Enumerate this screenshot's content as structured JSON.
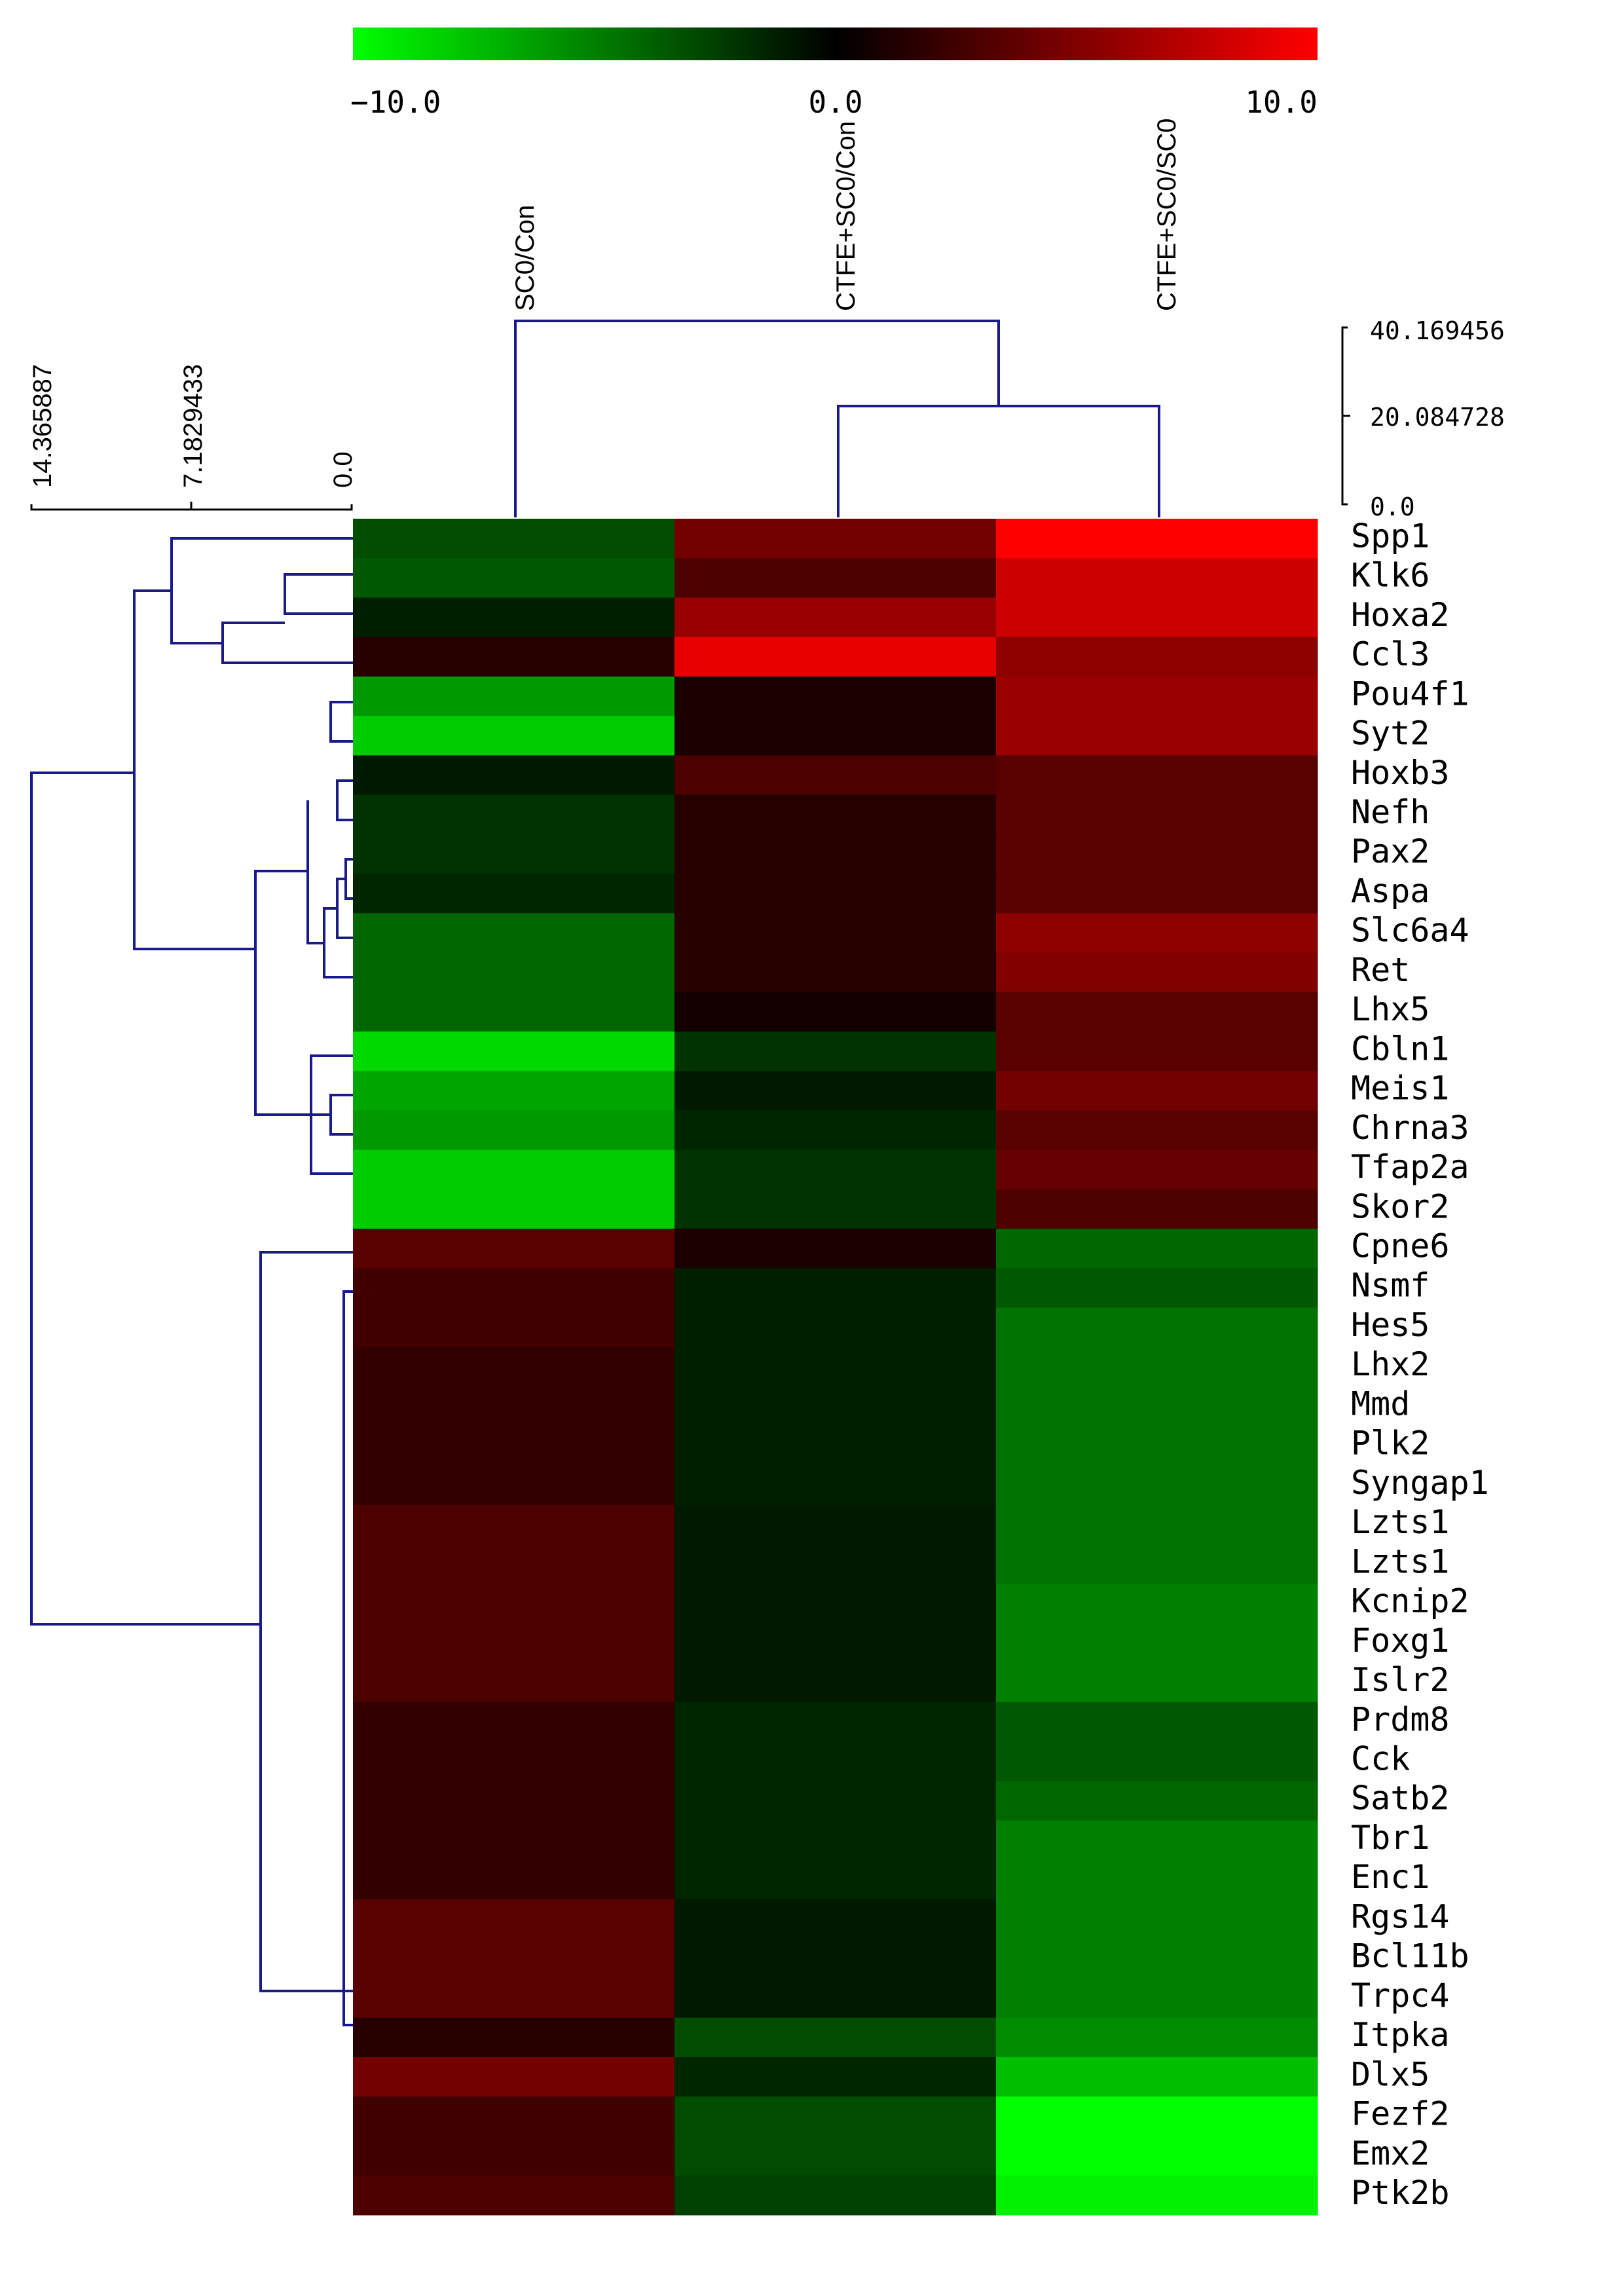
{
  "chart_data": {
    "type": "heatmap",
    "title": "",
    "colorbar": {
      "min": -10.0,
      "mid": 0.0,
      "max": 10.0,
      "tick_labels": [
        "−10.0",
        "0.0",
        "10.0"
      ],
      "low_color": "#00ff00",
      "mid_color": "#000000",
      "high_color": "#ff0000"
    },
    "columns": [
      "SC0/Con",
      "CTFE+SC0/Con",
      "CTFE+SC0/SC0"
    ],
    "rows": [
      "Spp1",
      "Klk6",
      "Hoxa2",
      "Ccl3",
      "Pou4f1",
      "Syt2",
      "Hoxb3",
      "Nefh",
      "Pax2",
      "Aspa",
      "Slc6a4",
      "Ret",
      "Lhx5",
      "Cbln1",
      "Meis1",
      "Chrna3",
      "Tfap2a",
      "Skor2",
      "Cpne6",
      "Nsmf",
      "Hes5",
      "Lhx2",
      "Mmd",
      "Plk2",
      "Syngap1",
      "Lzts1",
      "Lzts1",
      "Kcnip2",
      "Foxg1",
      "Islr2",
      "Prdm8",
      "Cck",
      "Satb2",
      "Tbr1",
      "Enc1",
      "Rgs14",
      "Bcl11b",
      "Trpc4",
      "Itpka",
      "Dlx5",
      "Fezf2",
      "Emx2",
      "Ptk2b"
    ],
    "values": [
      [
        -3.0,
        4.5,
        10.0
      ],
      [
        -3.5,
        3.0,
        8.0
      ],
      [
        -1.2,
        6.0,
        8.0
      ],
      [
        1.5,
        9.0,
        5.5
      ],
      [
        -6.0,
        1.0,
        6.0
      ],
      [
        -8.0,
        1.0,
        6.0
      ],
      [
        -1.0,
        3.0,
        3.5
      ],
      [
        -2.0,
        1.5,
        3.5
      ],
      [
        -2.0,
        1.5,
        3.5
      ],
      [
        -1.5,
        1.5,
        3.5
      ],
      [
        -4.0,
        1.5,
        5.5
      ],
      [
        -4.0,
        1.5,
        5.0
      ],
      [
        -4.0,
        0.8,
        3.5
      ],
      [
        -8.5,
        -2.0,
        3.5
      ],
      [
        -6.5,
        -1.0,
        4.5
      ],
      [
        -6.0,
        -1.5,
        3.5
      ],
      [
        -8.0,
        -2.0,
        4.0
      ],
      [
        -8.0,
        -2.0,
        3.0
      ],
      [
        3.5,
        1.0,
        -4.0
      ],
      [
        2.5,
        -1.2,
        -3.5
      ],
      [
        2.5,
        -1.2,
        -4.5
      ],
      [
        2.0,
        -1.2,
        -4.5
      ],
      [
        2.0,
        -1.2,
        -4.5
      ],
      [
        2.0,
        -1.2,
        -4.5
      ],
      [
        2.0,
        -1.2,
        -4.5
      ],
      [
        3.0,
        -1.0,
        -4.5
      ],
      [
        3.0,
        -1.0,
        -4.5
      ],
      [
        3.0,
        -1.0,
        -5.0
      ],
      [
        3.0,
        -1.0,
        -5.0
      ],
      [
        3.0,
        -1.0,
        -5.0
      ],
      [
        2.0,
        -1.5,
        -3.5
      ],
      [
        2.0,
        -1.5,
        -3.5
      ],
      [
        2.0,
        -1.5,
        -4.0
      ],
      [
        2.0,
        -1.5,
        -5.0
      ],
      [
        2.0,
        -1.5,
        -5.0
      ],
      [
        3.5,
        -1.0,
        -5.0
      ],
      [
        3.5,
        -1.0,
        -5.0
      ],
      [
        3.5,
        -1.0,
        -5.0
      ],
      [
        1.5,
        -3.0,
        -5.5
      ],
      [
        4.5,
        -1.5,
        -7.5
      ],
      [
        2.5,
        -3.0,
        -10.0
      ],
      [
        2.5,
        -3.0,
        -10.0
      ],
      [
        3.0,
        -2.5,
        -9.5
      ]
    ],
    "row_dendrogram_scale": {
      "labels": [
        "14.365887",
        "7.1829433",
        "0.0"
      ],
      "max": 14.365887
    },
    "col_dendrogram_scale": {
      "labels": [
        "40.169456",
        "20.084728",
        "0.0"
      ],
      "max": 40.169456
    },
    "dendrogram_color": "#1a1a8c"
  }
}
